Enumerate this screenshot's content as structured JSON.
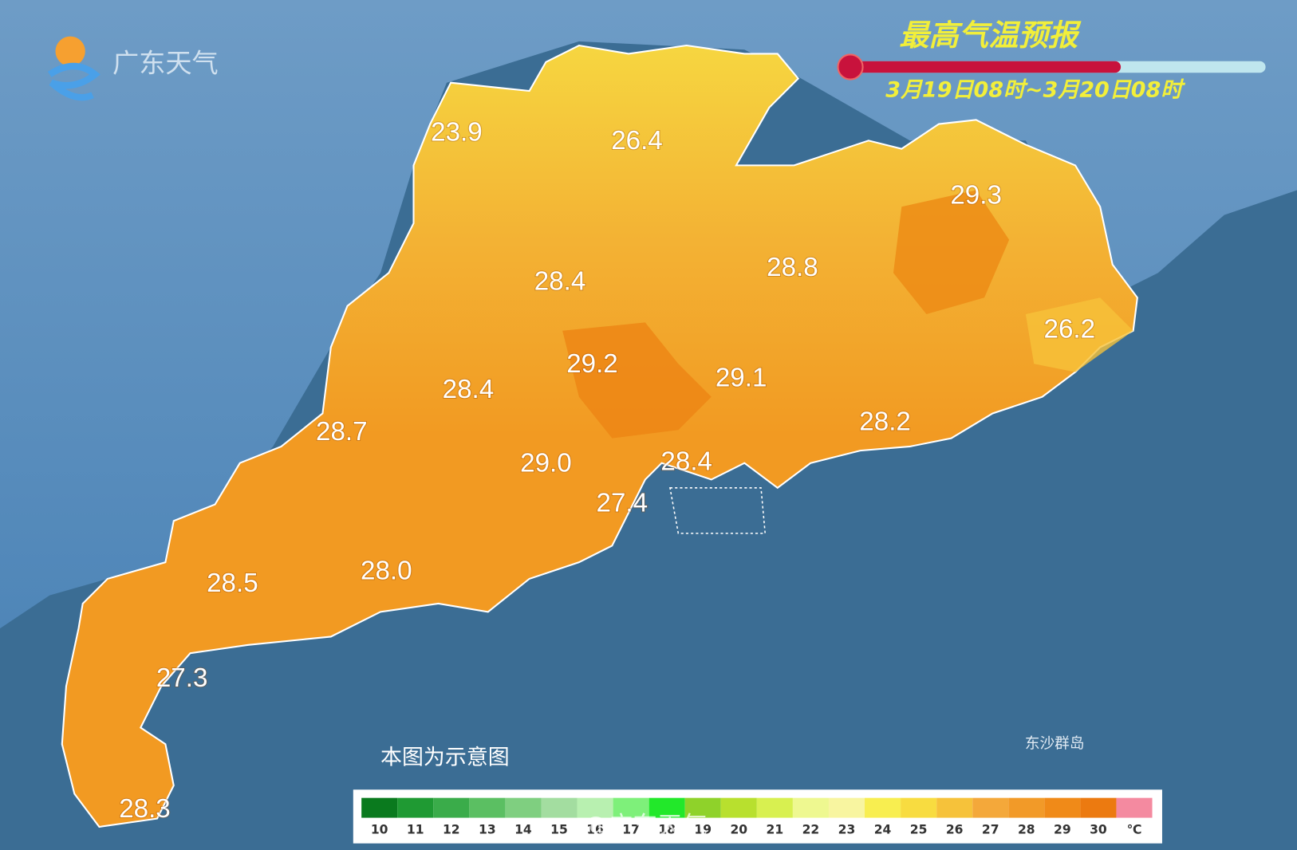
{
  "header": {
    "logo": "广东天气",
    "title": "最高气温预报",
    "period": "3月19日08时~3月20日08时"
  },
  "readings": [
    "23.9",
    "26.4",
    "29.3",
    "28.4",
    "28.8",
    "26.2",
    "29.2",
    "29.1",
    "28.4",
    "28.7",
    "28.2",
    "29.0",
    "28.4",
    "27.4",
    "28.5",
    "28.0",
    "27.3",
    "28.3"
  ],
  "note": "本图为示意图",
  "island_label": "东沙群岛",
  "watermark": "@广东天气",
  "legend": {
    "ticks": [
      10,
      11,
      12,
      13,
      14,
      15,
      16,
      17,
      18,
      19,
      20,
      21,
      22,
      23,
      24,
      25,
      26,
      27,
      28,
      29,
      30
    ],
    "unit": "℃",
    "colors": [
      "#0a7a1e",
      "#1f9a33",
      "#3aac4a",
      "#5bbf62",
      "#7fcf80",
      "#a3dda0",
      "#b8f0b0",
      "#7ef07a",
      "#22e82a",
      "#8fd22a",
      "#b8e02e",
      "#d8f050",
      "#eef890",
      "#f8f5a0",
      "#f8ee50",
      "#f8dc40",
      "#f6c23a",
      "#f4a83a",
      "#f29a28",
      "#f08a18",
      "#ec7a10",
      "#f48aa0"
    ]
  }
}
